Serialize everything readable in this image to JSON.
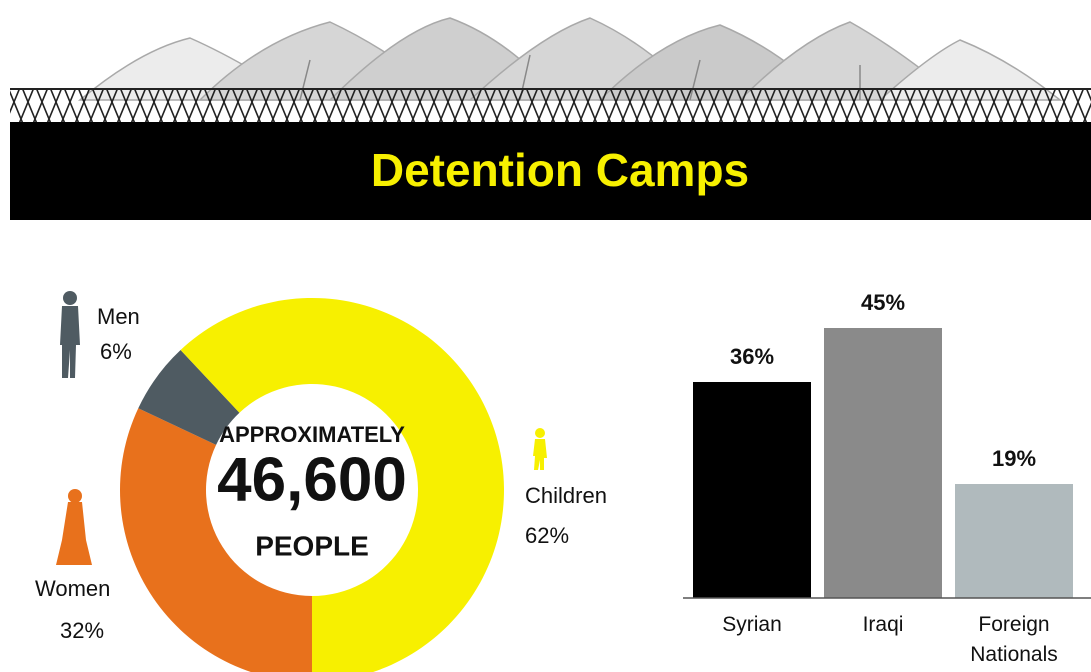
{
  "title": "Detention Camps",
  "chart_data": [
    {
      "type": "pie",
      "categories": [
        "Women",
        "Men",
        "Children"
      ],
      "values": [
        32,
        6,
        62
      ],
      "value_labels": [
        "32%",
        "6%",
        "62%"
      ],
      "colors": [
        "#e8711c",
        "#4f5b62",
        "#f7f000"
      ],
      "annotations": [
        "APPROXIMATELY",
        "46,600",
        "PEOPLE"
      ]
    },
    {
      "type": "bar",
      "categories": [
        "Syrian",
        "Iraqi",
        "Foreign Nationals"
      ],
      "values": [
        36,
        45,
        19
      ],
      "value_labels": [
        "36%",
        "45%",
        "19%"
      ],
      "colors": [
        "#000000",
        "#8a8a8a",
        "#b0babd"
      ]
    }
  ]
}
